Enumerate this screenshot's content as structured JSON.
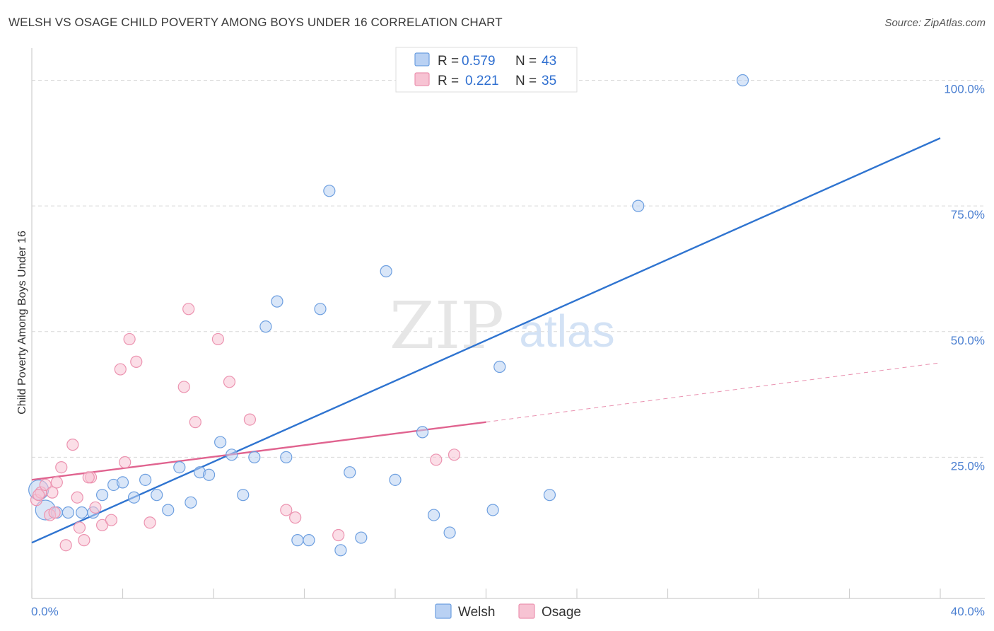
{
  "header": {
    "title": "WELSH VS OSAGE CHILD POVERTY AMONG BOYS UNDER 16 CORRELATION CHART",
    "source": "Source: ZipAtlas.com"
  },
  "watermark": {
    "zip": "ZIP",
    "atlas": "atlas"
  },
  "legend_box": {
    "rows": [
      {
        "r_label": "R =",
        "r_value": "0.579",
        "n_label": "N =",
        "n_value": "43"
      },
      {
        "r_label": "R =",
        "r_value": "0.221",
        "n_label": "N =",
        "n_value": "35"
      }
    ]
  },
  "bottom_legend": [
    "Welsh",
    "Osage"
  ],
  "colors": {
    "welsh_fill": "#b9d1f3",
    "welsh_stroke": "#6d9fe0",
    "welsh_line": "#2f74d0",
    "osage_fill": "#f7c3d3",
    "osage_stroke": "#ec93b0",
    "osage_line": "#e0638f",
    "grid": "#d9d9d9",
    "tick_label": "#4a7fd1"
  },
  "chart_data": {
    "type": "scatter",
    "title": "WELSH VS OSAGE CHILD POVERTY AMONG BOYS UNDER 16 CORRELATION CHART",
    "xlabel": "",
    "ylabel": "Child Poverty Among Boys Under 16",
    "xlim": [
      0,
      40
    ],
    "ylim": [
      0,
      105
    ],
    "x_ticks": [
      "0.0%",
      "40.0%"
    ],
    "y_ticks": [
      {
        "value": 25,
        "label": "25.0%"
      },
      {
        "value": 50,
        "label": "50.0%"
      },
      {
        "value": 75,
        "label": "75.0%"
      },
      {
        "value": 100,
        "label": "100.0%"
      }
    ],
    "grid": true,
    "legend_position": "top-center",
    "series": [
      {
        "name": "Welsh",
        "r": 0.579,
        "n": 43,
        "points": [
          [
            0.3,
            18.5
          ],
          [
            0.6,
            14.5
          ],
          [
            1.1,
            14.0
          ],
          [
            1.6,
            14.0
          ],
          [
            2.2,
            14.0
          ],
          [
            2.7,
            14.0
          ],
          [
            3.1,
            17.5
          ],
          [
            3.6,
            19.5
          ],
          [
            4.0,
            20.0
          ],
          [
            4.5,
            17.0
          ],
          [
            5.0,
            20.5
          ],
          [
            5.5,
            17.5
          ],
          [
            6.0,
            14.5
          ],
          [
            6.5,
            23.0
          ],
          [
            7.0,
            16.0
          ],
          [
            7.4,
            22.0
          ],
          [
            7.8,
            21.5
          ],
          [
            8.3,
            28.0
          ],
          [
            8.8,
            25.5
          ],
          [
            9.3,
            17.5
          ],
          [
            9.8,
            25.0
          ],
          [
            10.3,
            51.0
          ],
          [
            10.8,
            56.0
          ],
          [
            11.2,
            25.0
          ],
          [
            11.7,
            8.5
          ],
          [
            12.2,
            8.5
          ],
          [
            12.7,
            54.5
          ],
          [
            13.1,
            78.0
          ],
          [
            13.6,
            6.5
          ],
          [
            14.0,
            22.0
          ],
          [
            14.5,
            9.0
          ],
          [
            15.6,
            62.0
          ],
          [
            16.0,
            20.5
          ],
          [
            17.2,
            30.0
          ],
          [
            17.7,
            13.5
          ],
          [
            18.4,
            10.0
          ],
          [
            20.3,
            14.5
          ],
          [
            20.6,
            43.0
          ],
          [
            22.8,
            17.5
          ],
          [
            26.7,
            75.0
          ],
          [
            31.3,
            100.0
          ],
          [
            19.2,
            100.0
          ],
          [
            22.1,
            100.0
          ]
        ],
        "trend": {
          "x": [
            0,
            40
          ],
          "y": [
            8.0,
            88.5
          ]
        }
      },
      {
        "name": "Osage",
        "r": 0.221,
        "n": 35,
        "points": [
          [
            0.2,
            16.5
          ],
          [
            0.4,
            18.0
          ],
          [
            0.6,
            19.5
          ],
          [
            0.8,
            13.5
          ],
          [
            0.9,
            18.0
          ],
          [
            1.1,
            20.0
          ],
          [
            1.3,
            23.0
          ],
          [
            1.5,
            7.5
          ],
          [
            1.8,
            27.5
          ],
          [
            2.0,
            17.0
          ],
          [
            2.1,
            11.0
          ],
          [
            2.3,
            8.5
          ],
          [
            2.6,
            21.0
          ],
          [
            2.8,
            15.0
          ],
          [
            3.1,
            11.5
          ],
          [
            3.5,
            12.5
          ],
          [
            3.9,
            42.5
          ],
          [
            4.1,
            24.0
          ],
          [
            4.3,
            48.5
          ],
          [
            4.6,
            44.0
          ],
          [
            5.2,
            12.0
          ],
          [
            6.7,
            39.0
          ],
          [
            6.9,
            54.5
          ],
          [
            7.2,
            32.0
          ],
          [
            8.2,
            48.5
          ],
          [
            8.7,
            40.0
          ],
          [
            9.6,
            32.5
          ],
          [
            11.2,
            14.5
          ],
          [
            11.6,
            13.0
          ],
          [
            13.5,
            9.5
          ],
          [
            17.8,
            24.5
          ],
          [
            18.6,
            25.5
          ],
          [
            2.5,
            21.0
          ],
          [
            1.0,
            14.0
          ],
          [
            0.3,
            17.5
          ]
        ],
        "trend": {
          "x": [
            0,
            20
          ],
          "y": [
            20.5,
            32.0
          ]
        },
        "trend_extension": {
          "x": [
            20,
            40
          ],
          "y": [
            32.0,
            43.8
          ]
        }
      }
    ]
  }
}
